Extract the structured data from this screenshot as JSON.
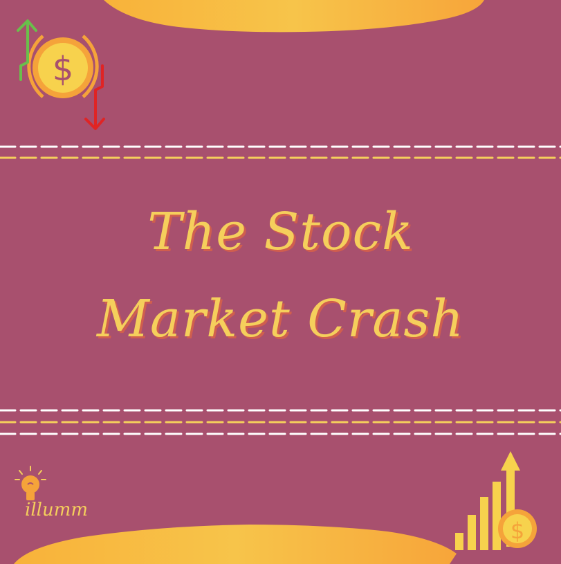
{
  "poster": {
    "title_line1": "The Stock",
    "title_line2": "Market Crash",
    "brand": "illumm"
  },
  "icons": {
    "top_left": "dollar-exchange-icon",
    "bottom_left": "lightbulb-icon",
    "bottom_right": "growth-chart-icon"
  },
  "colors": {
    "background": "#a8506e",
    "accent_yellow": "#f5cf5c",
    "accent_orange": "#f5a33a",
    "title_shadow": "#d05e4e",
    "arrow_up": "#6abf4b",
    "arrow_down": "#e02424"
  }
}
